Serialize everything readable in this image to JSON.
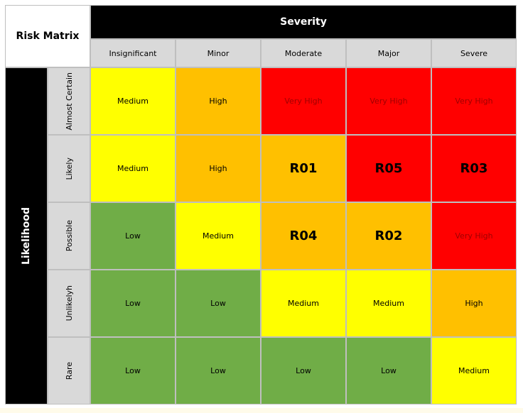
{
  "title": "Risk Matrix",
  "column_header": "Severity",
  "row_header": "Likelihood",
  "columns": [
    "Insignificant",
    "Minor",
    "Moderate",
    "Major",
    "Severe"
  ],
  "rows": [
    {
      "label": "Almost Certain",
      "cells": [
        {
          "text": "Medium",
          "color": "#ffff00"
        },
        {
          "text": "High",
          "color": "#ffc000"
        },
        {
          "text": "Very High",
          "color": "#ff0000",
          "text_color": "#a00000"
        },
        {
          "text": "Very High",
          "color": "#ff0000",
          "text_color": "#a00000"
        },
        {
          "text": "Very High",
          "color": "#ff0000",
          "text_color": "#a00000"
        }
      ]
    },
    {
      "label": "Likely",
      "cells": [
        {
          "text": "Medium",
          "color": "#ffff00"
        },
        {
          "text": "High",
          "color": "#ffc000"
        },
        {
          "text": "R01",
          "color": "#ffc000",
          "bold": true
        },
        {
          "text": "R05",
          "color": "#ff0000",
          "bold": true
        },
        {
          "text": "R03",
          "color": "#ff0000",
          "bold": true
        }
      ]
    },
    {
      "label": "Possible",
      "cells": [
        {
          "text": "Low",
          "color": "#70ad47"
        },
        {
          "text": "Medium",
          "color": "#ffff00"
        },
        {
          "text": "R04",
          "color": "#ffc000",
          "bold": true
        },
        {
          "text": "R02",
          "color": "#ffc000",
          "bold": true
        },
        {
          "text": "Very High",
          "color": "#ff0000",
          "text_color": "#a00000"
        }
      ]
    },
    {
      "label": "Unlikelyh",
      "cells": [
        {
          "text": "Low",
          "color": "#70ad47"
        },
        {
          "text": "Low",
          "color": "#70ad47"
        },
        {
          "text": "Medium",
          "color": "#ffff00"
        },
        {
          "text": "Medium",
          "color": "#ffff00"
        },
        {
          "text": "High",
          "color": "#ffc000"
        }
      ]
    },
    {
      "label": "Rare",
      "cells": [
        {
          "text": "Low",
          "color": "#70ad47"
        },
        {
          "text": "Low",
          "color": "#70ad47"
        },
        {
          "text": "Low",
          "color": "#70ad47"
        },
        {
          "text": "Low",
          "color": "#70ad47"
        },
        {
          "text": "Medium",
          "color": "#ffff00"
        }
      ]
    }
  ]
}
